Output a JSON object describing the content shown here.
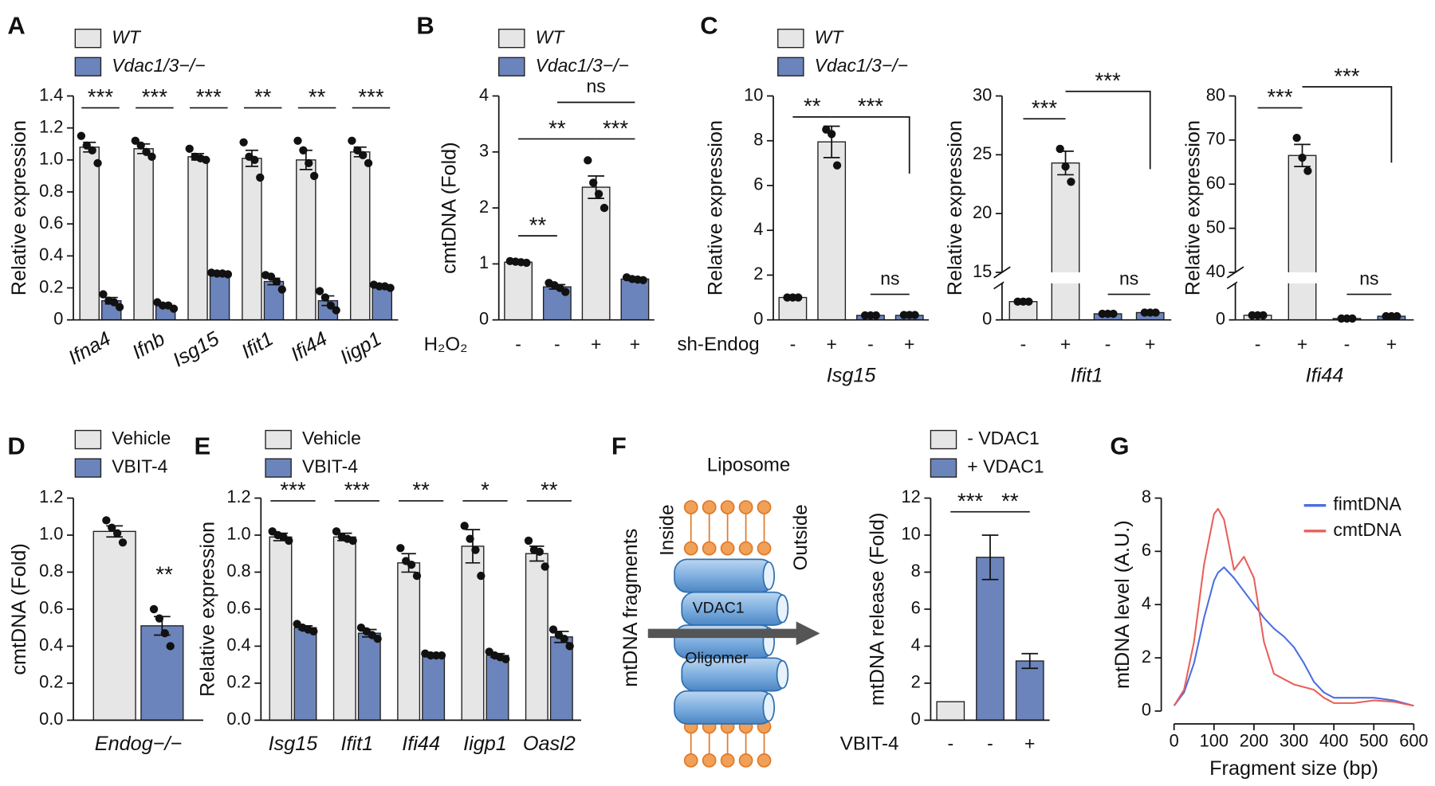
{
  "chart_data": [
    {
      "type": "bar",
      "panel": "A",
      "ylabel": "Relative expression",
      "categories": [
        "Ifna4",
        "Ifnb",
        "Isg15",
        "Ifit1",
        "Ifi44",
        "Iigp1"
      ],
      "series": [
        {
          "name": "WT",
          "color": "#e6e6e6",
          "values": [
            1.08,
            1.07,
            1.02,
            1.01,
            1.0,
            1.05
          ],
          "errors": [
            0.03,
            0.03,
            0.02,
            0.05,
            0.06,
            0.03
          ],
          "points": [
            [
              1.15,
              1.09,
              1.06,
              0.98
            ],
            [
              1.12,
              1.09,
              1.05,
              1.02
            ],
            [
              1.07,
              1.02,
              1.01,
              1.0
            ],
            [
              1.11,
              1.02,
              1.0,
              0.89
            ],
            [
              1.12,
              1.06,
              0.98,
              0.9
            ],
            [
              1.12,
              1.06,
              1.03,
              0.98
            ]
          ]
        },
        {
          "name": "Vdac1/3−/−",
          "color": "#6c84bc",
          "values": [
            0.12,
            0.09,
            0.29,
            0.24,
            0.12,
            0.21
          ],
          "errors": [
            0.02,
            0.01,
            0.005,
            0.02,
            0.03,
            0.005
          ],
          "points": [
            [
              0.16,
              0.12,
              0.11,
              0.08
            ],
            [
              0.11,
              0.09,
              0.09,
              0.07
            ],
            [
              0.295,
              0.29,
              0.29,
              0.285
            ],
            [
              0.28,
              0.27,
              0.24,
              0.19
            ],
            [
              0.18,
              0.14,
              0.09,
              0.06
            ],
            [
              0.22,
              0.21,
              0.21,
              0.2
            ]
          ]
        }
      ],
      "ylim": [
        0,
        1.4
      ],
      "yticks": [
        0,
        0.2,
        0.4,
        0.6,
        0.8,
        {
          "value": 1,
          "label": "1.0"
        },
        1.2,
        1.4
      ],
      "annotations": [
        "***",
        "***",
        "***",
        "**",
        "**",
        "***"
      ]
    },
    {
      "type": "bar",
      "panel": "B",
      "ylabel": "cmtDNA (Fold)",
      "row_label": "H₂O₂",
      "categories": [
        "-",
        "-",
        "+",
        "+"
      ],
      "series": [
        {
          "name": "WT",
          "color": "#e6e6e6",
          "values": [
            1.03,
            null,
            2.37,
            null
          ],
          "errors": [
            0.01,
            null,
            0.2,
            null
          ],
          "points": [
            [
              1.05,
              1.04,
              1.03,
              1.02
            ],
            null,
            [
              2.85,
              2.45,
              2.25,
              2.0
            ],
            null
          ]
        },
        {
          "name": "Vdac1/3−/−",
          "color": "#6c84bc",
          "values": [
            null,
            0.59,
            null,
            0.73
          ],
          "errors": [
            null,
            0.04,
            null,
            0.02
          ],
          "points": [
            null,
            [
              0.66,
              0.62,
              0.57,
              0.5
            ],
            null,
            [
              0.76,
              0.73,
              0.72,
              0.71
            ]
          ]
        }
      ],
      "ylim": [
        0,
        4
      ],
      "yticks": [
        0,
        1,
        2,
        3,
        4
      ],
      "annotations": [
        "**",
        "**",
        "***",
        "ns"
      ]
    },
    {
      "type": "bar",
      "panel": "C",
      "ylabel": "Relative expression",
      "row_label": "sh-Endog",
      "subtitle": "Isg15",
      "categories": [
        "-",
        "+",
        "-",
        "+"
      ],
      "series": [
        {
          "name": "WT",
          "color": "#e6e6e6",
          "values": [
            1.0,
            7.95,
            null,
            null
          ],
          "errors": [
            0.02,
            0.7,
            null,
            null
          ],
          "points": [
            [
              1.0,
              1.0,
              1.0
            ],
            [
              8.5,
              8.3,
              6.9
            ],
            null,
            null
          ]
        },
        {
          "name": "Vdac1/3−/−",
          "color": "#6c84bc",
          "values": [
            null,
            null,
            0.2,
            0.2
          ],
          "errors": [
            null,
            null,
            0.01,
            0.01
          ],
          "points": [
            null,
            null,
            [
              0.2,
              0.2,
              0.2
            ],
            [
              0.22,
              0.22,
              0.22
            ]
          ]
        }
      ],
      "ylim": [
        0,
        10
      ],
      "yticks": [
        0,
        2,
        4,
        6,
        8,
        10
      ],
      "annotations": [
        "**",
        "***",
        "ns"
      ]
    },
    {
      "type": "bar",
      "ylabel": "Relative expression",
      "subtitle": "Ifit1",
      "categories": [
        "-",
        "+",
        "-",
        "+"
      ],
      "series": [
        {
          "color": "#e6e6e6",
          "values": [
            1.5,
            24.3,
            null,
            null
          ],
          "errors": [
            0.02,
            1.0,
            null,
            null
          ],
          "points": [
            [
              1.5,
              1.5,
              1.5
            ],
            [
              25.5,
              24.0,
              22.7
            ],
            null,
            null
          ]
        },
        {
          "color": "#6c84bc",
          "values": [
            null,
            null,
            0.5,
            0.6
          ],
          "errors": [
            null,
            null,
            0.01,
            0.01
          ],
          "points": [
            null,
            null,
            [
              0.5,
              0.5,
              0.5
            ],
            [
              0.6,
              0.6,
              0.6
            ]
          ]
        }
      ],
      "ylim": [
        0,
        30
      ],
      "ybreak": [
        3,
        15
      ],
      "yticks": [
        0,
        15,
        20,
        25,
        30
      ],
      "annotations": [
        "***",
        "***",
        "ns"
      ]
    },
    {
      "type": "bar",
      "ylabel": "Relative expression",
      "subtitle": "Ifi44",
      "categories": [
        "-",
        "+",
        "-",
        "+"
      ],
      "series": [
        {
          "color": "#e6e6e6",
          "values": [
            1.0,
            66.5,
            null,
            null
          ],
          "errors": [
            0.02,
            2.5,
            null,
            null
          ],
          "points": [
            [
              1.0,
              1.0,
              1.0
            ],
            [
              70.5,
              66.0,
              63.0
            ],
            null,
            null
          ]
        },
        {
          "color": "#6c84bc",
          "values": [
            null,
            null,
            0.3,
            0.8
          ],
          "errors": [
            null,
            null,
            0.01,
            0.01
          ],
          "points": [
            null,
            null,
            [
              0.3,
              0.3,
              0.3
            ],
            [
              0.8,
              0.8,
              0.8
            ]
          ]
        }
      ],
      "ylim": [
        0,
        80
      ],
      "ybreak": [
        8,
        40
      ],
      "yticks": [
        0,
        40,
        50,
        60,
        70,
        80
      ],
      "annotations": [
        "***",
        "***",
        "ns"
      ]
    },
    {
      "type": "bar",
      "panel": "D",
      "ylabel": "cmtDNA (Fold)",
      "categories": [
        "Endog−/−"
      ],
      "series": [
        {
          "name": "Vehicle",
          "color": "#e6e6e6",
          "values": [
            1.02
          ],
          "errors": [
            0.03
          ],
          "points": [
            [
              1.08,
              1.04,
              1.01,
              0.96
            ]
          ]
        },
        {
          "name": "VBIT-4",
          "color": "#6c84bc",
          "values": [
            0.51
          ],
          "errors": [
            0.05
          ],
          "points": [
            [
              0.6,
              0.55,
              0.47,
              0.4
            ]
          ]
        }
      ],
      "ylim": [
        0,
        1.2
      ],
      "yticks": [
        {
          "value": 0,
          "label": "0.0"
        },
        0.2,
        0.4,
        0.6,
        0.8,
        {
          "value": 1,
          "label": "1.0"
        },
        1.2
      ],
      "annotations": [
        "**"
      ]
    },
    {
      "type": "bar",
      "panel": "E",
      "ylabel": "Relative expression",
      "categories": [
        "Isg15",
        "Ifit1",
        "Ifi44",
        "Iigp1",
        "Oasl2"
      ],
      "series": [
        {
          "name": "Vehicle",
          "color": "#e6e6e6",
          "values": [
            0.99,
            0.99,
            0.85,
            0.94,
            0.9
          ],
          "errors": [
            0.02,
            0.02,
            0.05,
            0.09,
            0.04
          ],
          "points": [
            [
              1.02,
              1.0,
              0.99,
              0.97
            ],
            [
              1.02,
              0.99,
              0.98,
              0.97
            ],
            [
              0.93,
              0.86,
              0.84,
              0.78
            ],
            [
              1.05,
              0.98,
              0.92,
              0.78
            ],
            [
              0.97,
              0.92,
              0.91,
              0.83
            ]
          ]
        },
        {
          "name": "VBIT-4",
          "color": "#6c84bc",
          "values": [
            0.5,
            0.47,
            0.35,
            0.35,
            0.45
          ],
          "errors": [
            0.01,
            0.02,
            0.005,
            0.01,
            0.03
          ],
          "points": [
            [
              0.52,
              0.5,
              0.49,
              0.48
            ],
            [
              0.5,
              0.48,
              0.46,
              0.44
            ],
            [
              0.36,
              0.35,
              0.35,
              0.35
            ],
            [
              0.37,
              0.35,
              0.34,
              0.33
            ],
            [
              0.49,
              0.46,
              0.44,
              0.4
            ]
          ]
        }
      ],
      "ylim": [
        0,
        1.2
      ],
      "yticks": [
        {
          "value": 0,
          "label": "0.0"
        },
        0.2,
        0.4,
        0.6,
        0.8,
        {
          "value": 1,
          "label": "1.0"
        },
        1.2
      ],
      "annotations": [
        "***",
        "***",
        "**",
        "*",
        "**"
      ]
    },
    {
      "type": "bar",
      "panel": "F",
      "ylabel": "mtDNA release (Fold)",
      "row_label": "VBIT-4",
      "categories": [
        "-",
        "-",
        "+"
      ],
      "series": [
        {
          "name": "- VDAC1",
          "color": "#e6e6e6",
          "values": [
            1.0,
            null,
            null
          ]
        },
        {
          "name": "+ VDAC1",
          "color": "#6c84bc",
          "values": [
            null,
            8.8,
            3.2
          ],
          "errors": [
            null,
            1.2,
            0.4
          ]
        }
      ],
      "ylim": [
        0,
        12
      ],
      "yticks": [
        0,
        2,
        4,
        6,
        8,
        10,
        12
      ],
      "annotations": [
        "***",
        "**"
      ]
    },
    {
      "type": "line",
      "panel": "G",
      "xlabel": "Fragment size (bp)",
      "ylabel": "mtDNA level (A.U.)",
      "x": [
        0,
        25,
        50,
        75,
        100,
        110,
        125,
        150,
        175,
        200,
        225,
        250,
        275,
        300,
        325,
        350,
        375,
        400,
        450,
        500,
        550,
        600
      ],
      "series": [
        {
          "name": "fimtDNA",
          "color": "#4a6fe0",
          "values": [
            0.2,
            0.7,
            1.8,
            3.5,
            4.9,
            5.2,
            5.4,
            5.0,
            4.5,
            4.0,
            3.5,
            3.1,
            2.8,
            2.4,
            1.8,
            1.1,
            0.7,
            0.5,
            0.5,
            0.5,
            0.4,
            0.2
          ]
        },
        {
          "name": "cmtDNA",
          "color": "#e8605a",
          "values": [
            0.2,
            0.8,
            2.6,
            5.5,
            7.4,
            7.6,
            7.2,
            5.3,
            5.8,
            5.0,
            2.6,
            1.4,
            1.2,
            1.0,
            0.9,
            0.8,
            0.5,
            0.3,
            0.3,
            0.4,
            0.35,
            0.2
          ]
        }
      ],
      "xlim": [
        0,
        600
      ],
      "xticks": [
        0,
        100,
        200,
        300,
        400,
        500,
        600
      ],
      "ylim": [
        0,
        8
      ],
      "yticks": [
        0,
        2,
        4,
        6,
        8
      ]
    }
  ],
  "diagram": {
    "title": "Liposome",
    "inside": "Inside",
    "outside": "Outside",
    "cargo": "mtDNA fragments",
    "channel": "VDAC1",
    "channel_state": "Oligomer"
  }
}
